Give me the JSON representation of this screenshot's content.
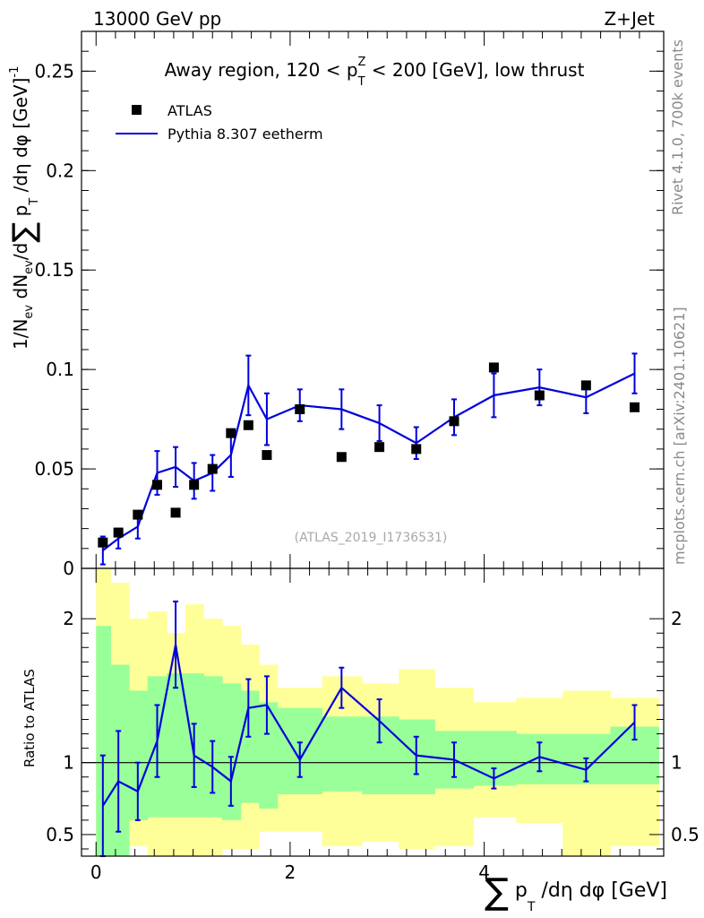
{
  "header": {
    "left": "13000 GeV pp",
    "right": "Z+Jet"
  },
  "side_labels": {
    "rivet": "Rivet 4.1.0,  700k events",
    "mcplots": "mcplots.cern.ch [arXiv:2401.10621]"
  },
  "chart_data": [
    {
      "type": "scatter",
      "title": "Away region, 120 < p_T^Z < 200 [GeV], low thrust",
      "title_parts": {
        "pre": "Away region, 120 < p",
        "sub": "T",
        "sup": "Z",
        "post": " < 200 [GeV], low thrust"
      },
      "ylabel": "1/N_ev dN_ev/d∑ p_T /dη dφ  [GeV]^-1",
      "ylabel_parts": {
        "a": "1/N",
        "a_sub": "ev",
        "b": " dN",
        "b_sub": "ev",
        "c": "/d",
        "sum": "∑",
        "d": " p",
        "d_sub": "T",
        "e": " /dη dφ  [GeV]",
        "e_sup": "-1"
      },
      "watermark": "(ATLAS_2019_I1736531)",
      "xlim": [
        -0.15,
        5.85
      ],
      "ylim": [
        0,
        0.27
      ],
      "yticks": [
        0,
        0.05,
        0.1,
        0.15,
        0.2,
        0.25
      ],
      "ytick_labels": [
        "0",
        "0.05",
        "0.1",
        "0.15",
        "0.2",
        "0.25"
      ],
      "legend": [
        {
          "name": "ATLAS",
          "marker": "square",
          "color": "#000000"
        },
        {
          "name": "Pythia 8.307 eetherm",
          "marker": "line",
          "color": "#0000dd"
        }
      ],
      "x": [
        0.07,
        0.23,
        0.43,
        0.63,
        0.82,
        1.01,
        1.2,
        1.39,
        1.57,
        1.76,
        2.1,
        2.53,
        2.92,
        3.3,
        3.69,
        4.1,
        4.57,
        5.05,
        5.55
      ],
      "series": [
        {
          "name": "ATLAS",
          "values": [
            0.013,
            0.018,
            0.027,
            0.042,
            0.028,
            0.042,
            0.05,
            0.068,
            0.072,
            0.057,
            0.08,
            0.056,
            0.061,
            0.06,
            0.074,
            0.101,
            0.087,
            0.092,
            0.081
          ]
        },
        {
          "name": "Pythia 8.307 eetherm",
          "values": [
            0.009,
            0.015,
            0.021,
            0.048,
            0.051,
            0.044,
            0.048,
            0.057,
            0.092,
            0.075,
            0.082,
            0.08,
            0.073,
            0.063,
            0.076,
            0.087,
            0.091,
            0.086,
            0.098
          ],
          "err": [
            0.007,
            0.005,
            0.006,
            0.011,
            0.01,
            0.009,
            0.009,
            0.011,
            0.015,
            0.013,
            0.008,
            0.01,
            0.009,
            0.008,
            0.009,
            0.011,
            0.009,
            0.008,
            0.01
          ]
        }
      ]
    },
    {
      "type": "line",
      "ylabel": "Ratio to ATLAS",
      "xlabel": "∑ p_T /dη dφ [GeV]",
      "xlabel_parts": {
        "sum": "∑",
        "a": " p",
        "a_sub": "T",
        "b": " /dη dφ [GeV]"
      },
      "xlim": [
        -0.15,
        5.85
      ],
      "ylim": [
        0.35,
        2.35
      ],
      "yticks": [
        0.5,
        1,
        2
      ],
      "ytick_labels": [
        "0.5",
        "1",
        "2"
      ],
      "xticks": [
        0,
        2,
        4
      ],
      "xtick_labels": [
        "0",
        "2",
        "4"
      ],
      "reference_line": 1,
      "band_edges": [
        0,
        0.15,
        0.34,
        0.53,
        0.73,
        0.92,
        1.11,
        1.3,
        1.49,
        1.68,
        1.87,
        2.33,
        2.74,
        3.12,
        3.49,
        3.89,
        4.33,
        4.81,
        5.3,
        5.8
      ],
      "band_green": {
        "color": "#99ff99",
        "lo": [
          0.35,
          0.35,
          0.6,
          0.62,
          0.62,
          0.62,
          0.62,
          0.6,
          0.72,
          0.68,
          0.78,
          0.8,
          0.78,
          0.78,
          0.82,
          0.84,
          0.85,
          0.85,
          0.85
        ],
        "hi": [
          1.95,
          1.68,
          1.5,
          1.6,
          1.62,
          1.62,
          1.6,
          1.55,
          1.5,
          1.42,
          1.38,
          1.32,
          1.32,
          1.3,
          1.22,
          1.22,
          1.2,
          1.2,
          1.25
        ]
      },
      "band_yellow": {
        "color": "#ffff99",
        "lo": [
          0.35,
          0.35,
          0.42,
          0.35,
          0.35,
          0.35,
          0.35,
          0.4,
          0.4,
          0.52,
          0.52,
          0.42,
          0.45,
          0.4,
          0.42,
          0.62,
          0.58,
          0.35,
          0.42
        ],
        "hi": [
          2.35,
          2.25,
          2.0,
          2.05,
          1.9,
          2.1,
          2.0,
          1.95,
          1.82,
          1.68,
          1.52,
          1.6,
          1.55,
          1.65,
          1.52,
          1.42,
          1.45,
          1.5,
          1.45
        ]
      },
      "series": [
        {
          "name": "Pythia 8.307 eetherm",
          "x": [
            0.07,
            0.23,
            0.43,
            0.63,
            0.82,
            1.01,
            1.2,
            1.39,
            1.57,
            1.76,
            2.1,
            2.53,
            2.92,
            3.3,
            3.69,
            4.1,
            4.57,
            5.05,
            5.55
          ],
          "values": [
            0.7,
            0.87,
            0.8,
            1.15,
            1.82,
            1.05,
            0.97,
            0.87,
            1.38,
            1.4,
            1.02,
            1.52,
            1.29,
            1.05,
            1.02,
            0.89,
            1.04,
            0.95,
            1.28
          ],
          "err": [
            0.35,
            0.35,
            0.2,
            0.25,
            0.3,
            0.22,
            0.18,
            0.17,
            0.2,
            0.2,
            0.12,
            0.14,
            0.15,
            0.13,
            0.12,
            0.07,
            0.1,
            0.08,
            0.12
          ]
        }
      ]
    }
  ]
}
